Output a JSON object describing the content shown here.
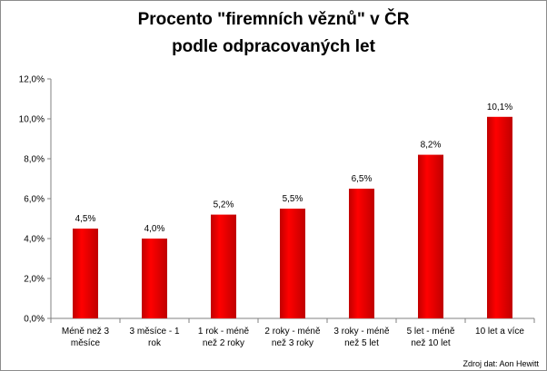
{
  "chart_data": {
    "type": "bar",
    "title_lines": [
      "Procento \"firemních věznů\" v ČR",
      "podle odpracovaných let"
    ],
    "categories": [
      [
        "Méně než 3",
        "měsíce"
      ],
      [
        "3 měsíce - 1",
        "rok"
      ],
      [
        "1 rok - méně",
        "než 2 roky"
      ],
      [
        "2 roky - méně",
        "než 3 roky"
      ],
      [
        "3 roky - méně",
        "než 5 let"
      ],
      [
        "5 let - méně",
        "než 10 let"
      ],
      [
        "10 let a více"
      ]
    ],
    "values": [
      4.5,
      4.0,
      5.2,
      5.5,
      6.5,
      8.2,
      10.1
    ],
    "data_labels": [
      "4,5%",
      "4,0%",
      "5,2%",
      "5,5%",
      "6,5%",
      "8,2%",
      "10,1%"
    ],
    "yticks": [
      0,
      2,
      4,
      6,
      8,
      10,
      12
    ],
    "ytick_labels": [
      "0,0%",
      "2,0%",
      "4,0%",
      "6,0%",
      "8,0%",
      "10,0%",
      "12,0%"
    ],
    "ylim": [
      0,
      12
    ],
    "grid": false,
    "legend": "none",
    "bar_color": "#ff0000",
    "bar_shade_color": "#c00000",
    "axis_color": "#808080"
  },
  "source": "Zdroj dat: Aon Hewitt"
}
